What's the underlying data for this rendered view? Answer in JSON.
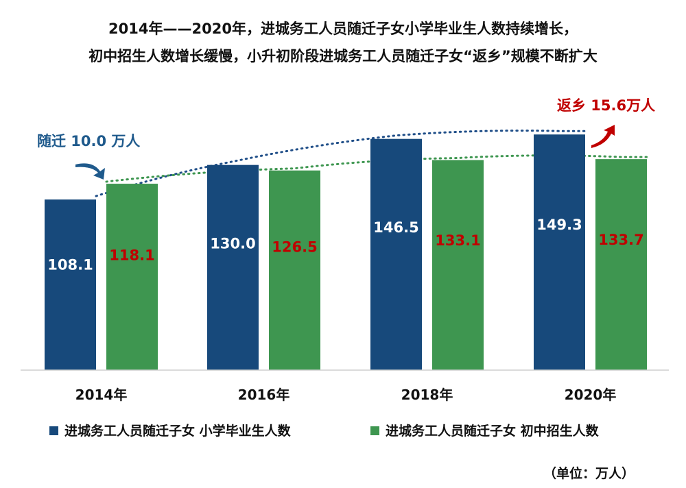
{
  "title_lines": [
    "2014年——2020年，进城务工人员随迁子女小学毕业生人数持续增长，",
    "初中招生人数增长缓慢，小升初阶段进城务工人员随迁子女“返乡”规模不断扩大"
  ],
  "callouts": {
    "left": "随迁 10.0 万人",
    "right": "返乡 15.6万人"
  },
  "unit_note": "（单位：万人）",
  "colors": {
    "primary": "#17497b",
    "secondary": "#3e9650",
    "value_on_primary": "#ffffff",
    "value_on_secondary": "#c00000",
    "arrow_left": "#1f5a8c",
    "arrow_right": "#c00000",
    "trend_primary": "#1f4e88",
    "trend_secondary": "#3e9650"
  },
  "chart_data": {
    "type": "bar",
    "categories": [
      "2014年",
      "2016年",
      "2018年",
      "2020年"
    ],
    "series": [
      {
        "name": "进城务工人员随迁子女 小学毕业生人数",
        "values": [
          108.1,
          130.0,
          146.5,
          149.3
        ]
      },
      {
        "name": "进城务工人员随迁子女 初中招生人数",
        "values": [
          118.1,
          126.5,
          133.1,
          133.7
        ]
      }
    ],
    "value_labels": [
      [
        "108.1",
        "130.0",
        "146.5",
        "149.3"
      ],
      [
        "118.1",
        "126.5",
        "133.1",
        "133.7"
      ]
    ],
    "ylim": [
      0,
      152
    ],
    "grid": false,
    "legend_position": "bottom",
    "trend_lines": "dotted"
  }
}
